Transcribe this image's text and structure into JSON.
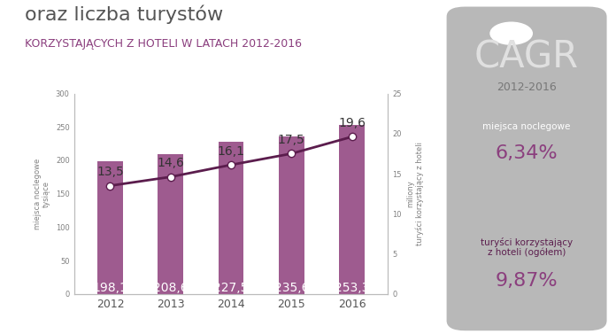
{
  "chart_data": {
    "type": "bar",
    "title": "oraz liczba turystów",
    "subtitle": "KORZYSTAJĄCYCH Z HOTELI W LATACH 2012-2016",
    "categories": [
      "2012",
      "2013",
      "2014",
      "2015",
      "2016"
    ],
    "series": [
      {
        "type": "bar",
        "color": "#9e5b8f",
        "values": [
          198.1,
          208.6,
          227.5,
          235.6,
          253.3
        ],
        "value_labels": [
          "198,1",
          "208,6",
          "227,5",
          "235,6",
          "253,3"
        ]
      },
      {
        "type": "line",
        "axis": "y2",
        "color": "#5b1d4d",
        "marker": "circle",
        "line_style": "solid",
        "values": [
          13.5,
          14.6,
          16.1,
          17.5,
          19.6
        ],
        "value_labels": [
          "13,5",
          "14,6",
          "16,1",
          "17,5",
          "19,6"
        ]
      }
    ],
    "y_label": "miejsca noclegowe\ntysiące",
    "y2_label": "miliony\nturyści korzystający z hoteli",
    "ylim": [
      0,
      300
    ],
    "yticks": [
      0,
      50,
      100,
      150,
      200,
      250,
      300
    ],
    "y2lim": [
      0,
      25
    ],
    "y2ticks": [
      0,
      5,
      10,
      15,
      20,
      25
    ],
    "data_labels": true,
    "grid": false,
    "cagr": {
      "title": "CAGR",
      "period": "2012-2016",
      "items": [
        {
          "label": "miejsca noclegowe",
          "value_label": "6,34%"
        },
        {
          "label": "turyści korzystający\nz hoteli (ogółem)",
          "value_label": "9,87%"
        }
      ]
    }
  }
}
